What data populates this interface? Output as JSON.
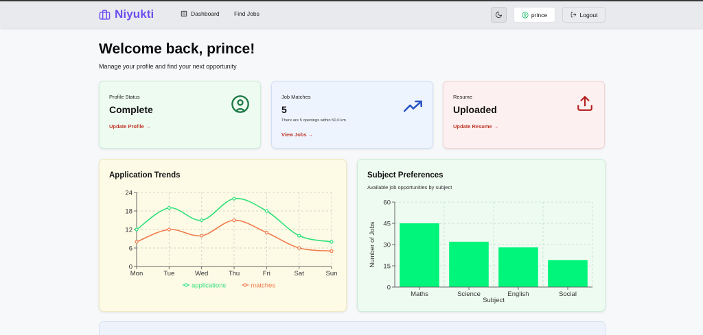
{
  "brand": {
    "name": "Niyukti",
    "color": "#6d4df2"
  },
  "nav": {
    "dashboard": "Dashboard",
    "find_jobs": "Find Jobs",
    "user": "prince",
    "logout": "Logout"
  },
  "welcome": {
    "title": "Welcome back, prince!",
    "subtitle": "Manage your profile and find your next opportunity"
  },
  "cards": {
    "profile": {
      "label": "Profile Status",
      "value": "Complete",
      "link": "Update Profile →",
      "icon": "user-circle-icon",
      "bg": "#eefbf1"
    },
    "matches": {
      "label": "Job Matches",
      "value": "5",
      "note": "There are 5 openings within 50.0 km",
      "link": "View Jobs →",
      "icon": "trending-up-icon",
      "bg": "#eef4fd"
    },
    "resume": {
      "label": "Resume",
      "value": "Uploaded",
      "link": "Update Resume →",
      "icon": "upload-icon",
      "bg": "#fdf0f0"
    }
  },
  "trends": {
    "title": "Application Trends",
    "chart_data": {
      "type": "line",
      "x": [
        "Mon",
        "Tue",
        "Wed",
        "Thu",
        "Fri",
        "Sat",
        "Sun"
      ],
      "yticks": [
        "0",
        "6",
        "12",
        "18",
        "24"
      ],
      "ylim": [
        0,
        24
      ],
      "series": [
        {
          "name": "applications",
          "values": [
            12,
            19,
            15,
            22,
            18,
            10,
            8
          ],
          "color": "#2ee07a"
        },
        {
          "name": "matches",
          "values": [
            8,
            12,
            10,
            15,
            11,
            6,
            5
          ],
          "color": "#f07a4a"
        }
      ],
      "legend": "bottom-center",
      "grid": true
    }
  },
  "subjects": {
    "title": "Subject Preferences",
    "subtitle": "Available job opportunities by subject",
    "chart_data": {
      "type": "bar",
      "categories": [
        "Maths",
        "Science",
        "English",
        "Social"
      ],
      "values": [
        45,
        32,
        28,
        19
      ],
      "yticks": [
        "0",
        "15",
        "30",
        "45",
        "60"
      ],
      "ylim": [
        0,
        60
      ],
      "xlabel": "Subject",
      "ylabel": "Number of Jobs",
      "color": "#00f57a",
      "grid": true
    }
  }
}
